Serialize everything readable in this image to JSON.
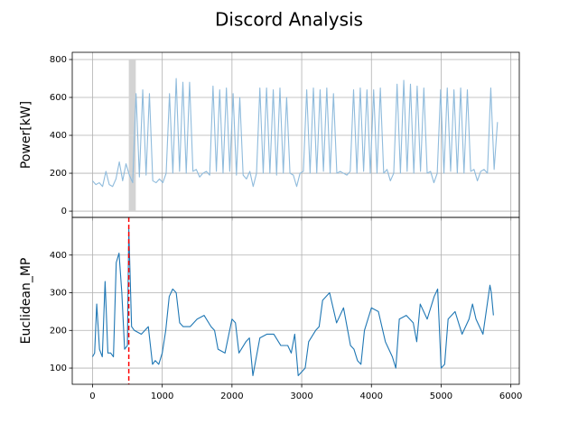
{
  "title": "Discord Analysis",
  "chart_data": [
    {
      "type": "line",
      "ylabel": "Power[kW]",
      "grid": true,
      "xlim": [
        -291,
        6121
      ],
      "xticks": [
        0,
        1000,
        2000,
        3000,
        4000,
        5000,
        6000
      ],
      "ylim": [
        -33,
        838
      ],
      "yticks": [
        0,
        200,
        400,
        600,
        800
      ],
      "highlight": {
        "x": [
          520,
          620
        ],
        "y": [
          0,
          800
        ],
        "color": "#d3d3d3"
      },
      "x": [
        0,
        48,
        96,
        144,
        192,
        240,
        288,
        336,
        384,
        432,
        480,
        528,
        576,
        624,
        672,
        720,
        768,
        816,
        864,
        912,
        960,
        1008,
        1056,
        1104,
        1152,
        1200,
        1248,
        1296,
        1344,
        1392,
        1440,
        1488,
        1536,
        1584,
        1632,
        1680,
        1728,
        1776,
        1824,
        1872,
        1920,
        1968,
        2016,
        2064,
        2112,
        2160,
        2208,
        2256,
        2304,
        2352,
        2400,
        2448,
        2496,
        2544,
        2592,
        2640,
        2688,
        2736,
        2784,
        2832,
        2880,
        2928,
        2976,
        3024,
        3072,
        3120,
        3168,
        3216,
        3264,
        3312,
        3360,
        3408,
        3456,
        3504,
        3552,
        3600,
        3648,
        3696,
        3744,
        3792,
        3840,
        3888,
        3936,
        3984,
        4032,
        4080,
        4128,
        4176,
        4224,
        4272,
        4320,
        4368,
        4416,
        4464,
        4512,
        4560,
        4608,
        4656,
        4704,
        4752,
        4800,
        4848,
        4896,
        4944,
        4992,
        5040,
        5088,
        5136,
        5184,
        5232,
        5280,
        5328,
        5376,
        5424,
        5472,
        5520,
        5568,
        5616,
        5664,
        5712,
        5760,
        5808
      ],
      "series": [
        {
          "color": "#8fbbdc",
          "values": [
            160,
            140,
            150,
            130,
            210,
            140,
            130,
            170,
            260,
            160,
            250,
            190,
            150,
            620,
            180,
            640,
            190,
            620,
            160,
            150,
            170,
            150,
            200,
            620,
            200,
            700,
            210,
            680,
            200,
            680,
            210,
            220,
            180,
            200,
            210,
            190,
            660,
            210,
            640,
            200,
            650,
            210,
            620,
            190,
            600,
            190,
            170,
            210,
            130,
            200,
            650,
            200,
            650,
            200,
            640,
            190,
            650,
            200,
            600,
            200,
            190,
            130,
            200,
            210,
            640,
            200,
            650,
            200,
            640,
            210,
            650,
            200,
            620,
            200,
            210,
            200,
            190,
            210,
            640,
            200,
            650,
            210,
            640,
            200,
            640,
            200,
            650,
            200,
            220,
            160,
            200,
            670,
            200,
            690,
            210,
            670,
            200,
            660,
            210,
            650,
            200,
            210,
            150,
            200,
            640,
            200,
            650,
            210,
            640,
            200,
            650,
            200,
            640,
            210,
            220,
            160,
            210,
            220,
            200,
            650,
            220,
            470
          ]
        }
      ]
    },
    {
      "type": "line",
      "ylabel": "Euclidean_MP",
      "grid": true,
      "xlim": [
        -291,
        6121
      ],
      "xticks": [
        0,
        1000,
        2000,
        3000,
        4000,
        5000,
        6000
      ],
      "ylim": [
        57,
        500
      ],
      "yticks": [
        100,
        200,
        300,
        400
      ],
      "vline": {
        "x": 520,
        "color": "#ff0000"
      },
      "x": [
        0,
        30,
        60,
        100,
        140,
        180,
        220,
        260,
        300,
        340,
        380,
        420,
        460,
        500,
        520,
        560,
        600,
        700,
        800,
        860,
        900,
        950,
        1000,
        1050,
        1100,
        1150,
        1200,
        1250,
        1300,
        1400,
        1500,
        1600,
        1700,
        1750,
        1800,
        1900,
        2000,
        2050,
        2100,
        2200,
        2250,
        2300,
        2400,
        2500,
        2600,
        2700,
        2800,
        2850,
        2900,
        2950,
        3000,
        3050,
        3100,
        3200,
        3250,
        3300,
        3400,
        3500,
        3600,
        3700,
        3750,
        3800,
        3850,
        3900,
        4000,
        4100,
        4200,
        4300,
        4350,
        4400,
        4500,
        4600,
        4650,
        4700,
        4800,
        4900,
        4950,
        5000,
        5050,
        5100,
        5200,
        5300,
        5400,
        5450,
        5500,
        5600,
        5700,
        5720,
        5750
      ],
      "series": [
        {
          "color": "#1f77b4",
          "values": [
            130,
            140,
            270,
            150,
            130,
            330,
            140,
            140,
            130,
            380,
            405,
            300,
            150,
            160,
            470,
            210,
            200,
            190,
            210,
            110,
            120,
            110,
            140,
            200,
            290,
            310,
            300,
            220,
            210,
            210,
            230,
            240,
            210,
            200,
            150,
            140,
            230,
            220,
            140,
            170,
            180,
            80,
            180,
            190,
            190,
            160,
            160,
            140,
            190,
            80,
            90,
            100,
            170,
            200,
            210,
            280,
            300,
            220,
            260,
            160,
            150,
            120,
            110,
            200,
            260,
            250,
            170,
            130,
            100,
            230,
            240,
            220,
            170,
            270,
            230,
            290,
            310,
            100,
            110,
            230,
            250,
            190,
            230,
            270,
            230,
            190,
            320,
            300,
            240
          ]
        }
      ]
    }
  ]
}
